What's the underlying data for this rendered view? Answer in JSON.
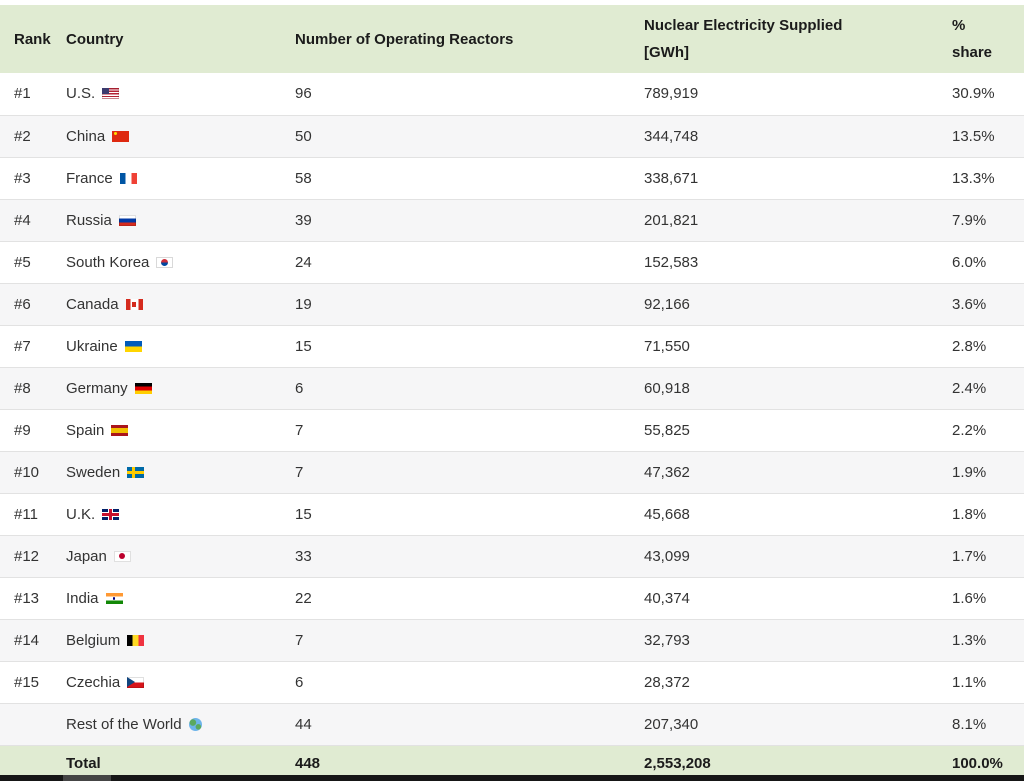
{
  "table": {
    "columns": [
      {
        "label": "Rank"
      },
      {
        "label": "Country"
      },
      {
        "label": "Number of Operating Reactors"
      },
      {
        "label": "Nuclear Electricity Supplied",
        "label2": "[GWh]"
      },
      {
        "label": "%",
        "label2": "share"
      }
    ],
    "rows": [
      {
        "rank": "#1",
        "country": "U.S.",
        "flag": "us",
        "icon": "us-flag-icon",
        "reactors": "96",
        "gwh": "789,919",
        "share": "30.9%"
      },
      {
        "rank": "#2",
        "country": "China",
        "flag": "cn",
        "icon": "china-flag-icon",
        "reactors": "50",
        "gwh": "344,748",
        "share": "13.5%"
      },
      {
        "rank": "#3",
        "country": "France",
        "flag": "fr",
        "icon": "france-flag-icon",
        "reactors": "58",
        "gwh": "338,671",
        "share": "13.3%"
      },
      {
        "rank": "#4",
        "country": "Russia",
        "flag": "ru",
        "icon": "russia-flag-icon",
        "reactors": "39",
        "gwh": "201,821",
        "share": "7.9%"
      },
      {
        "rank": "#5",
        "country": "South Korea",
        "flag": "kr",
        "icon": "south-korea-flag-icon",
        "reactors": "24",
        "gwh": "152,583",
        "share": "6.0%"
      },
      {
        "rank": "#6",
        "country": "Canada",
        "flag": "ca",
        "icon": "canada-flag-icon",
        "reactors": "19",
        "gwh": "92,166",
        "share": "3.6%"
      },
      {
        "rank": "#7",
        "country": "Ukraine",
        "flag": "ua",
        "icon": "ukraine-flag-icon",
        "reactors": "15",
        "gwh": "71,550",
        "share": "2.8%"
      },
      {
        "rank": "#8",
        "country": "Germany",
        "flag": "de",
        "icon": "germany-flag-icon",
        "reactors": "6",
        "gwh": "60,918",
        "share": "2.4%"
      },
      {
        "rank": "#9",
        "country": "Spain",
        "flag": "es",
        "icon": "spain-flag-icon",
        "reactors": "7",
        "gwh": "55,825",
        "share": "2.2%"
      },
      {
        "rank": "#10",
        "country": "Sweden",
        "flag": "se",
        "icon": "sweden-flag-icon",
        "reactors": "7",
        "gwh": "47,362",
        "share": "1.9%"
      },
      {
        "rank": "#11",
        "country": "U.K.",
        "flag": "gb",
        "icon": "uk-flag-icon",
        "reactors": "15",
        "gwh": "45,668",
        "share": "1.8%"
      },
      {
        "rank": "#12",
        "country": "Japan",
        "flag": "jp",
        "icon": "japan-flag-icon",
        "reactors": "33",
        "gwh": "43,099",
        "share": "1.7%"
      },
      {
        "rank": "#13",
        "country": "India",
        "flag": "in",
        "icon": "india-flag-icon",
        "reactors": "22",
        "gwh": "40,374",
        "share": "1.6%"
      },
      {
        "rank": "#14",
        "country": "Belgium",
        "flag": "be",
        "icon": "belgium-flag-icon",
        "reactors": "7",
        "gwh": "32,793",
        "share": "1.3%"
      },
      {
        "rank": "#15",
        "country": "Czechia",
        "flag": "cz",
        "icon": "czechia-flag-icon",
        "reactors": "6",
        "gwh": "28,372",
        "share": "1.1%"
      },
      {
        "rank": "",
        "country": "Rest of the World",
        "flag": "world",
        "icon": "globe-icon",
        "reactors": "44",
        "gwh": "207,340",
        "share": "8.1%"
      }
    ],
    "total_row": {
      "label": "Total",
      "reactors": "448",
      "gwh": "2,553,208",
      "share": "100.0%"
    }
  },
  "colors": {
    "header_bg": "#e0ebd2",
    "total_bg": "#e0ebd2",
    "row_alt_bg": "#f6f6f7",
    "separator": "#e2e2e2",
    "text": "#333333",
    "header_text": "#1b1b1b",
    "scrollbar_track": "#161616",
    "scrollbar_thumb": "#454545"
  }
}
